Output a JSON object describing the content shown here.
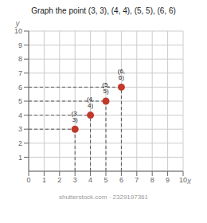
{
  "chart_data": {
    "type": "scatter",
    "title": "Graph the point (3, 3), (4, 4), (5, 5), (6, 6)",
    "x_label": "x",
    "y_label": "y",
    "x": [
      3,
      4,
      5,
      6
    ],
    "values": [
      3,
      4,
      5,
      6
    ],
    "value_labels": [
      "(3, 3)",
      "(4, 4)",
      "(5, 5)",
      "(6, 6)"
    ],
    "data_labels": true,
    "color": "#c0392b",
    "xlim": [
      0,
      10
    ],
    "ylim": [
      0,
      10
    ],
    "xticks": [
      0,
      1,
      2,
      3,
      4,
      5,
      6,
      7,
      8,
      9,
      10
    ],
    "yticks": [
      1,
      2,
      3,
      4,
      5,
      6,
      7,
      8,
      9,
      10
    ],
    "grid": true,
    "annotations": [
      "shutterstock.com · 2329197361"
    ]
  }
}
